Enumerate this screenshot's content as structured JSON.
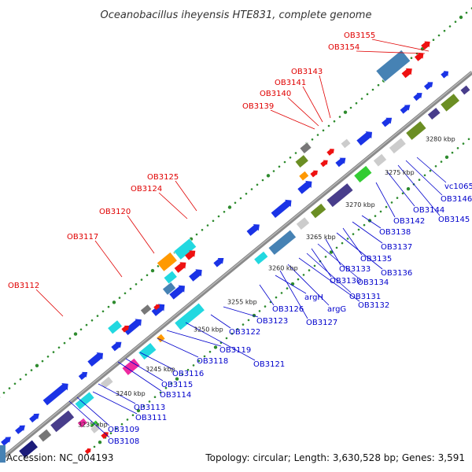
{
  "title": "Oceanobacillus iheyensis HTE831, complete genome",
  "footer": {
    "accession": "Accession: NC_004193",
    "summary": "Topology: circular; Length: 3,630,528 bp; Genes: 3,591"
  },
  "colors": {
    "backbone": "#8a8a8a",
    "dots": "#2e8b2e",
    "label_top": "#e00000",
    "label_bottom": "#0000cc",
    "gene_blue": "#1a33e6",
    "gene_red": "#ee1111",
    "gene_cyan": "#22d8e0",
    "gene_steel": "#4682b4",
    "gene_navy": "#1c1c7a",
    "gene_slate": "#483d8b",
    "gene_olive": "#6b8e23",
    "gene_green": "#33cc33",
    "gene_gray": "#777777",
    "gene_orange": "#ff9900",
    "gene_pink": "#ee2aa0",
    "gene_lightgray": "#cccccc"
  },
  "scale_ticks": [
    "3235 kbp",
    "3240 kbp",
    "3245 kbp",
    "3250 kbp",
    "3255 kbp",
    "3260 kbp",
    "3265 kbp",
    "3270 kbp",
    "3275 kbp",
    "3280 kbp"
  ],
  "labels_top": [
    "OB3112",
    "OB3117",
    "OB3120",
    "OB3124",
    "OB3125",
    "OB3139",
    "OB3140",
    "OB3141",
    "OB3143",
    "OB3154",
    "OB3155"
  ],
  "labels_bottom": [
    "OB3108",
    "OB3109",
    "OB3111",
    "OB3113",
    "OB3114",
    "OB3115",
    "OB3116",
    "OB3118",
    "OB3119",
    "OB3121",
    "OB3122",
    "OB3123",
    "OB3126",
    "argH",
    "OB3127",
    "argG",
    "OB3132",
    "OB3131",
    "OB3130",
    "OB3134",
    "OB3133",
    "OB3136",
    "OB3135",
    "OB3137",
    "OB3138",
    "OB3142",
    "OB3144",
    "OB3145",
    "OB3146",
    "vc1065"
  ]
}
